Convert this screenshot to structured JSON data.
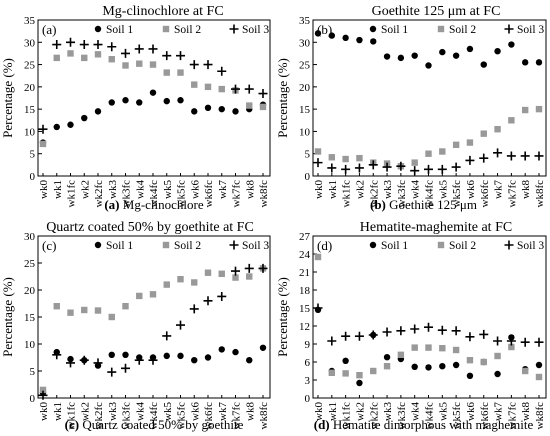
{
  "figure": {
    "legend_names": [
      "Soil 1",
      "Soil 2",
      "Soil 3"
    ],
    "ylabel": "Percentage (%)",
    "series_colors": [
      "#000000",
      "#999999",
      "#000000"
    ],
    "series_markers": [
      "circle",
      "square",
      "plus"
    ]
  },
  "chart_data": [
    {
      "type": "scatter",
      "panel_label": "(a)",
      "title": "Mg-clinochlore at FC",
      "caption_prefix": "(a)",
      "caption": "Mg-clinochlore",
      "ylabel": "Percentage (%)",
      "ylim": [
        0,
        35
      ],
      "yticks": [
        0,
        5,
        10,
        15,
        20,
        25,
        30,
        35
      ],
      "grid": false,
      "legend": "top",
      "categories": [
        "wk0",
        "wk1",
        "wk1fc",
        "wk2",
        "wk2fc",
        "wk3",
        "wk3fc",
        "wk4",
        "wk4fc",
        "wk5",
        "wk5fc",
        "wk6",
        "wk6fc",
        "wk7",
        "wk7fc",
        "wk8",
        "wk8fc"
      ],
      "series": [
        {
          "name": "Soil 1",
          "values": [
            7.5,
            11,
            11.5,
            13,
            14.5,
            16.5,
            17,
            16.5,
            18.7,
            16.8,
            17,
            14.5,
            15.3,
            15,
            14.5,
            15,
            16
          ]
        },
        {
          "name": "Soil 2",
          "values": [
            7.2,
            26.5,
            27.5,
            26.5,
            27.3,
            26.2,
            24.8,
            25.2,
            25,
            23.2,
            23.2,
            20.5,
            20,
            19.5,
            19.2,
            15.8,
            15.5
          ]
        },
        {
          "name": "Soil 3",
          "values": [
            10.5,
            29.5,
            30,
            29.5,
            29.5,
            29,
            27.5,
            28.5,
            28.5,
            27,
            27,
            25,
            25,
            23.5,
            19.5,
            19.5,
            18.5
          ]
        }
      ]
    },
    {
      "type": "scatter",
      "panel_label": "(b)",
      "title": "Goethite 125 μm at FC",
      "caption_prefix": "(b)",
      "caption": "Goethite 125 μm",
      "ylabel": "Percentage (%)",
      "ylim": [
        0,
        35
      ],
      "yticks": [
        0,
        5,
        10,
        15,
        20,
        25,
        30,
        35
      ],
      "grid": false,
      "legend": "top",
      "categories": [
        "wk0",
        "wk1",
        "wk1fc",
        "wk2",
        "wk2fc",
        "wk3",
        "wk3fc",
        "wk4",
        "wk4fc",
        "wk5",
        "wk5fc",
        "wk6",
        "wk6fc",
        "wk7",
        "wk7fc",
        "wk8",
        "wk8fc"
      ],
      "series": [
        {
          "name": "Soil 1",
          "values": [
            32,
            31.5,
            31,
            30.5,
            30.2,
            26.8,
            26.5,
            27,
            24.8,
            27.8,
            27,
            28.5,
            25,
            28,
            29.5,
            25.5,
            25.5
          ]
        },
        {
          "name": "Soil 2",
          "values": [
            5.5,
            4.2,
            3.8,
            4,
            3,
            2.8,
            2.2,
            3,
            5,
            5.5,
            7,
            7.5,
            9.5,
            10.5,
            12.5,
            14.8,
            15
          ]
        },
        {
          "name": "Soil 3",
          "values": [
            3,
            1.8,
            1.5,
            1.8,
            2.5,
            2,
            2.2,
            1.2,
            1.5,
            1.5,
            2,
            3.5,
            4,
            5.2,
            4.5,
            4.5,
            4.5
          ]
        }
      ]
    },
    {
      "type": "scatter",
      "panel_label": "(c)",
      "title": "Quartz coated 50% by goethite at FC",
      "caption_prefix": "(c)",
      "caption": "Quartz coated 50% by goethite",
      "ylabel": "Percentage (%)",
      "ylim": [
        0,
        30
      ],
      "yticks": [
        0,
        5,
        10,
        15,
        20,
        25,
        30
      ],
      "grid": false,
      "legend": "top",
      "categories": [
        "wk0",
        "wk1",
        "wk1fc",
        "wk2",
        "wk2fc",
        "wk3",
        "wk3fc",
        "wk4",
        "wk4fc",
        "wk5",
        "wk5fc",
        "wk6",
        "wk6fc",
        "wk7",
        "wk7fc",
        "wk8",
        "wk8fc"
      ],
      "series": [
        {
          "name": "Soil 1",
          "values": [
            1,
            8.5,
            7.2,
            7,
            6,
            8,
            8,
            7.5,
            7.5,
            7.8,
            7.8,
            7,
            7.5,
            9,
            8.5,
            7,
            9.3
          ]
        },
        {
          "name": "Soil 2",
          "values": [
            1.5,
            17,
            15.8,
            16.3,
            16.2,
            15,
            17,
            18.9,
            19.2,
            21,
            22,
            21.4,
            23.2,
            23,
            22.3,
            22.5,
            24
          ]
        },
        {
          "name": "Soil 3",
          "values": [
            0.5,
            8,
            6.5,
            7,
            6.5,
            4.8,
            5.5,
            7,
            7,
            11.5,
            13.5,
            16.5,
            18,
            18.8,
            23.5,
            24,
            24
          ]
        }
      ]
    },
    {
      "type": "scatter",
      "panel_label": "(d)",
      "title": "Hematite-maghemite at FC",
      "caption_prefix": "(d)",
      "caption": "Hematite dimorphous with maghemite",
      "ylabel": "Percentage (%)",
      "ylim": [
        0,
        27
      ],
      "yticks": [
        0,
        3,
        6,
        9,
        12,
        15,
        18,
        21,
        24,
        27
      ],
      "grid": false,
      "legend": "top",
      "categories": [
        "wk0",
        "wk1",
        "wk1fc",
        "wk2",
        "wk2fc",
        "wk3",
        "wk3fc",
        "wk4",
        "wk4fc",
        "wk5",
        "wk5fc",
        "wk6",
        "wk6fc",
        "wk7",
        "wk7fc",
        "wk8",
        "wk8fc"
      ],
      "series": [
        {
          "name": "Soil 1",
          "values": [
            14.7,
            4.5,
            6.2,
            2.5,
            10.5,
            6.8,
            6.5,
            5.2,
            5.1,
            5.3,
            5.5,
            3.7,
            6,
            4,
            10.1,
            4.8,
            5.5
          ]
        },
        {
          "name": "Soil 2",
          "values": [
            23.5,
            4.2,
            4.1,
            3.8,
            4.5,
            5.3,
            7.2,
            8.4,
            8.4,
            8.3,
            8,
            6.3,
            6,
            7,
            8.5,
            4.5,
            3.5
          ]
        },
        {
          "name": "Soil 3",
          "values": [
            15,
            9.5,
            10.3,
            10.3,
            10.5,
            11,
            11.2,
            11.5,
            11.8,
            11.3,
            11.2,
            10.2,
            10.6,
            9.5,
            9.5,
            9.3,
            9.3
          ]
        }
      ]
    }
  ]
}
